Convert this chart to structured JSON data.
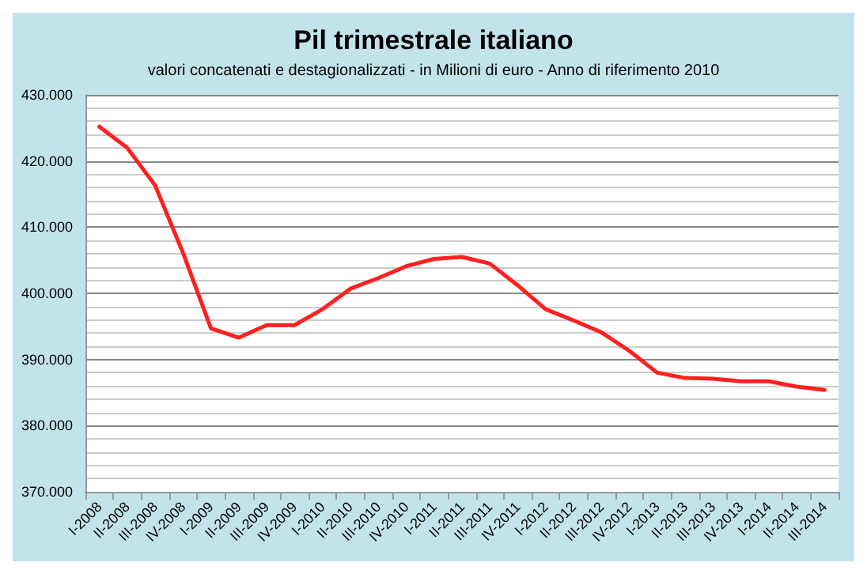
{
  "chart_data": {
    "type": "line",
    "title": "Pil trimestrale italiano",
    "subtitle": "valori concatenati e destagionalizzati - in Milioni di euro - Anno di riferimento 2010",
    "categories": [
      "I-2008",
      "II-2008",
      "III-2008",
      "IV-2008",
      "I-2009",
      "II-2009",
      "III-2009",
      "IV-2009",
      "I-2010",
      "II-2010",
      "III-2010",
      "IV-2010",
      "I-2011",
      "II-2011",
      "III-2011",
      "IV-2011",
      "I-2012",
      "II-2012",
      "III-2012",
      "IV-2012",
      "I-2013",
      "II-2013",
      "III-2013",
      "IV-2013",
      "I-2014",
      "II-2014",
      "III-2014"
    ],
    "series": [
      {
        "color": "#ff2020",
        "values": [
          425.2,
          422.0,
          416.3,
          406.1,
          394.7,
          393.3,
          395.2,
          395.2,
          397.6,
          400.7,
          402.3,
          404.1,
          405.2,
          405.5,
          404.5,
          401.2,
          397.6,
          395.9,
          394.1,
          391.3,
          388.0,
          387.2,
          387.1,
          386.7,
          386.7,
          385.9,
          385.4
        ]
      }
    ],
    "ylim": [
      370,
      430
    ],
    "yticks": [
      {
        "value": 370,
        "label": "370.000"
      },
      {
        "value": 380,
        "label": "380.000"
      },
      {
        "value": 390,
        "label": "390.000"
      },
      {
        "value": 400,
        "label": "400.000"
      },
      {
        "value": 410,
        "label": "410.000"
      },
      {
        "value": 420,
        "label": "420.000"
      },
      {
        "value": 430,
        "label": "430.000"
      }
    ],
    "grid": "y",
    "marker": "none",
    "line_style": "solid"
  }
}
